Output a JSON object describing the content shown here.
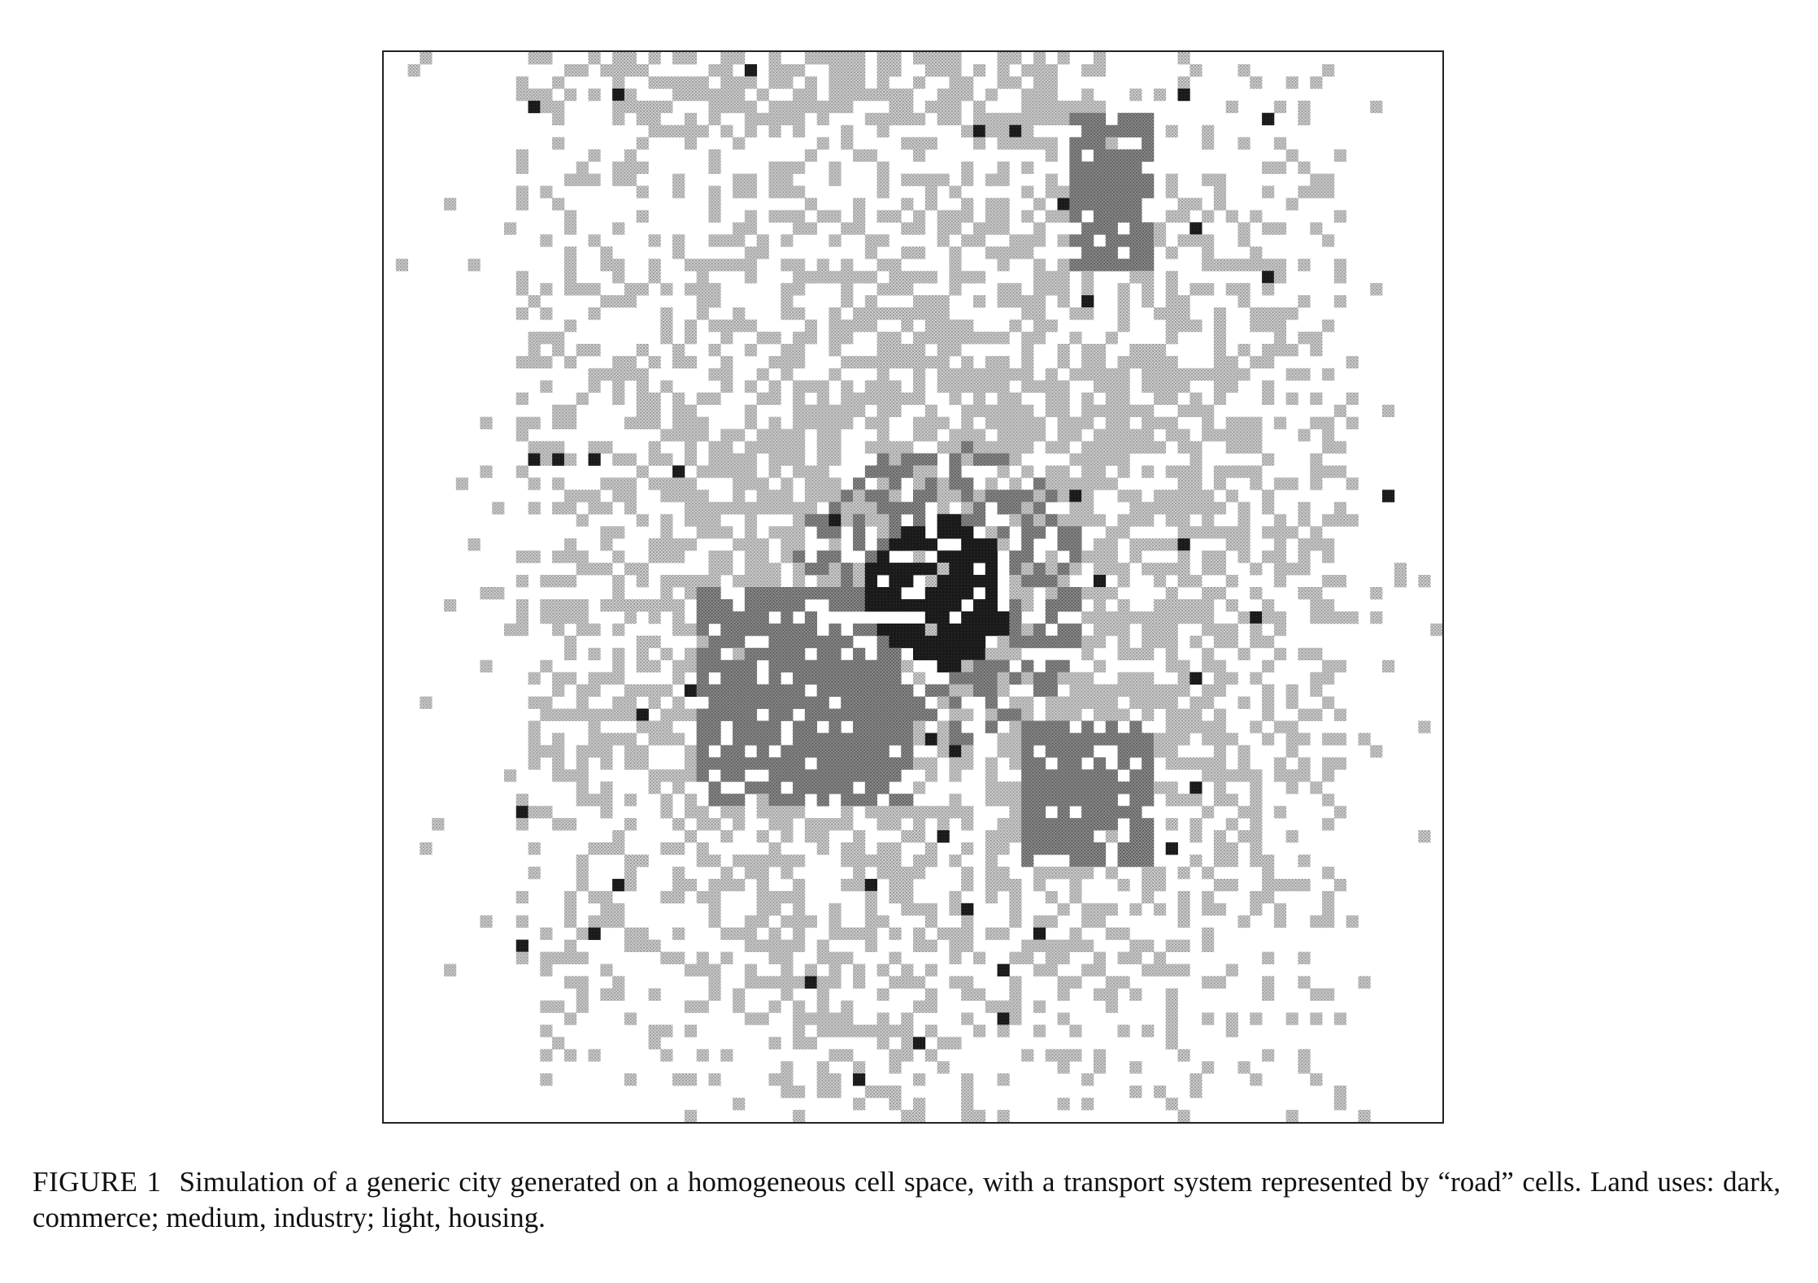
{
  "figure": {
    "label": "FIGURE 1",
    "caption": "Simulation of a generic city generated on a homogeneous cell space, with a transport system represented by “road” cells. Land uses: dark, commerce; medium, industry; light, housing.",
    "land_use_colors": {
      "commerce": "#1c1c1c",
      "industry": "#8a8a8a",
      "housing": "#bdbdbd",
      "road": "#ffffff",
      "vacant": "#ffffff"
    }
  }
}
